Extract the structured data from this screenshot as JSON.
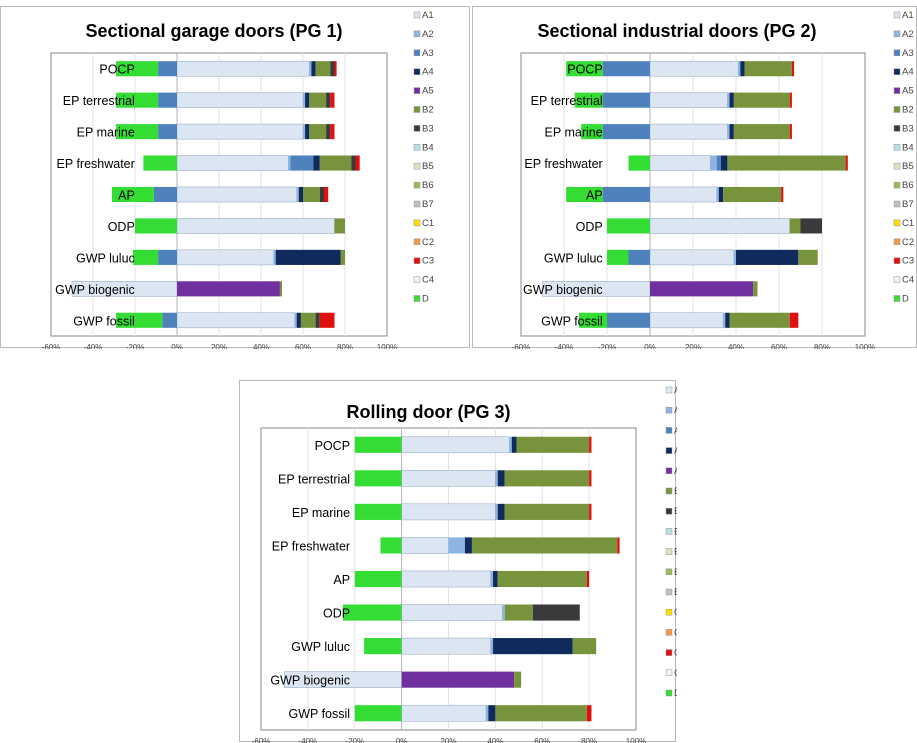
{
  "legend_labels": [
    "A1",
    "A2",
    "A3",
    "A4",
    "A5",
    "B2",
    "B3",
    "B4",
    "B5",
    "B6",
    "B7",
    "C1",
    "C2",
    "C3",
    "C4",
    "D"
  ],
  "module_colors": {
    "A1": "#dce6f2",
    "A2": "#8db4e2",
    "A3": "#4f81bd",
    "A4": "#0f2a5c",
    "A5": "#7030a0",
    "B2": "#77933c",
    "B3": "#3a3a3a",
    "B4": "#b7dee8",
    "B5": "#d7e4bd",
    "B6": "#9bbb59",
    "B7": "#bfbfbf",
    "C1": "#ffdd00",
    "C2": "#f79646",
    "C3": "#e01010",
    "C4": "#f2f2f2",
    "D": "#33dd33"
  },
  "chart_data": [
    {
      "type": "bar",
      "orientation": "horizontal",
      "stacked": true,
      "title": "Sectional garage doors (PG 1)",
      "categories": [
        "POCP",
        "EP terrestrial",
        "EP marine",
        "EP freshwater",
        "AP",
        "ODP",
        "GWP luluc",
        "GWP biogenic",
        "GWP fossil"
      ],
      "xlim": [
        -60,
        100
      ],
      "x_ticks": [
        "-60%",
        "-40%",
        "-20%",
        "0%",
        "20%",
        "40%",
        "60%",
        "80%",
        "100%"
      ],
      "grid": true,
      "legend": "right",
      "series": [
        {
          "name": "A1",
          "values": [
            63,
            60,
            60,
            53,
            57,
            75,
            46,
            -50,
            56
          ]
        },
        {
          "name": "A2",
          "values": [
            1,
            1,
            1,
            1,
            1,
            0,
            1,
            0,
            1
          ]
        },
        {
          "name": "A3",
          "values": [
            -9,
            -9,
            -9,
            11,
            -11,
            0,
            -9,
            0,
            -7
          ]
        },
        {
          "name": "A4",
          "values": [
            2,
            2,
            2,
            3,
            2,
            0,
            31,
            0,
            2
          ]
        },
        {
          "name": "A5",
          "values": [
            0,
            0,
            0,
            0,
            0,
            0,
            0,
            49,
            0
          ]
        },
        {
          "name": "B2",
          "values": [
            7,
            8,
            8,
            15,
            8,
            5,
            2,
            1,
            7
          ]
        },
        {
          "name": "B3",
          "values": [
            2,
            2,
            2,
            2,
            2,
            0,
            0,
            0,
            2
          ]
        },
        {
          "name": "C3",
          "values": [
            1,
            2,
            2,
            2,
            2,
            0,
            0,
            0,
            7
          ]
        },
        {
          "name": "D",
          "values": [
            -20,
            -20,
            -20,
            -16,
            -20,
            -20,
            -12,
            0,
            -22
          ]
        }
      ]
    },
    {
      "type": "bar",
      "orientation": "horizontal",
      "stacked": true,
      "title": "Sectional industrial doors (PG 2)",
      "categories": [
        "POCP",
        "EP terrestrial",
        "EP marine",
        "EP freshwater",
        "AP",
        "ODP",
        "GWP luluc",
        "GWP biogenic",
        "GWP fossil"
      ],
      "xlim": [
        -60,
        100
      ],
      "x_ticks": [
        "-60%",
        "-40%",
        "-20%",
        "0%",
        "20%",
        "40%",
        "60%",
        "80%",
        "100%"
      ],
      "grid": true,
      "legend": "right",
      "series": [
        {
          "name": "A1",
          "values": [
            41,
            36,
            36,
            28,
            31,
            65,
            39,
            -50,
            34
          ]
        },
        {
          "name": "A2",
          "values": [
            1,
            1,
            1,
            3,
            1,
            0,
            1,
            0,
            1
          ]
        },
        {
          "name": "A3",
          "values": [
            -22,
            -22,
            -22,
            2,
            -22,
            0,
            -10,
            0,
            -20
          ]
        },
        {
          "name": "A4",
          "values": [
            2,
            2,
            2,
            3,
            2,
            0,
            29,
            0,
            2
          ]
        },
        {
          "name": "A5",
          "values": [
            0,
            0,
            0,
            0,
            0,
            0,
            0,
            48,
            0
          ]
        },
        {
          "name": "B2",
          "values": [
            22,
            26,
            26,
            55,
            27,
            5,
            9,
            2,
            28
          ]
        },
        {
          "name": "B3",
          "values": [
            0,
            0,
            0,
            0,
            0,
            10,
            0,
            0,
            0
          ]
        },
        {
          "name": "C3",
          "values": [
            1,
            1,
            1,
            1,
            1,
            0,
            0,
            0,
            4
          ]
        },
        {
          "name": "D",
          "values": [
            -17,
            -13,
            -10,
            -10,
            -17,
            -20,
            -10,
            0,
            -13
          ]
        }
      ]
    },
    {
      "type": "bar",
      "orientation": "horizontal",
      "stacked": true,
      "title": "Rolling door (PG 3)",
      "categories": [
        "POCP",
        "EP terrestrial",
        "EP marine",
        "EP freshwater",
        "AP",
        "ODP",
        "GWP luluc",
        "GWP biogenic",
        "GWP fossil"
      ],
      "xlim": [
        -60,
        100
      ],
      "x_ticks": [
        "-60%",
        "-40%",
        "-20%",
        "0%",
        "20%",
        "40%",
        "60%",
        "80%",
        "100%"
      ],
      "grid": true,
      "legend": "right",
      "series": [
        {
          "name": "A1",
          "values": [
            46,
            40,
            40,
            20,
            38,
            43,
            38,
            -50,
            36
          ]
        },
        {
          "name": "A2",
          "values": [
            1,
            1,
            1,
            7,
            1,
            1,
            1,
            0,
            1
          ]
        },
        {
          "name": "A3",
          "values": [
            0,
            0,
            0,
            0,
            0,
            0,
            0,
            0,
            0
          ]
        },
        {
          "name": "A4",
          "values": [
            2,
            3,
            3,
            3,
            2,
            0,
            34,
            0,
            3
          ]
        },
        {
          "name": "A5",
          "values": [
            0,
            0,
            0,
            0,
            0,
            0,
            0,
            48,
            0
          ]
        },
        {
          "name": "B2",
          "values": [
            31,
            36,
            36,
            62,
            38,
            12,
            10,
            3,
            39
          ]
        },
        {
          "name": "B3",
          "values": [
            0,
            0,
            0,
            0,
            0,
            20,
            0,
            0,
            0
          ]
        },
        {
          "name": "C3",
          "values": [
            1,
            1,
            1,
            1,
            1,
            0,
            0,
            0,
            2
          ]
        },
        {
          "name": "D",
          "values": [
            -20,
            -20,
            -20,
            -9,
            -20,
            -25,
            -16,
            0,
            -20
          ]
        }
      ]
    }
  ]
}
